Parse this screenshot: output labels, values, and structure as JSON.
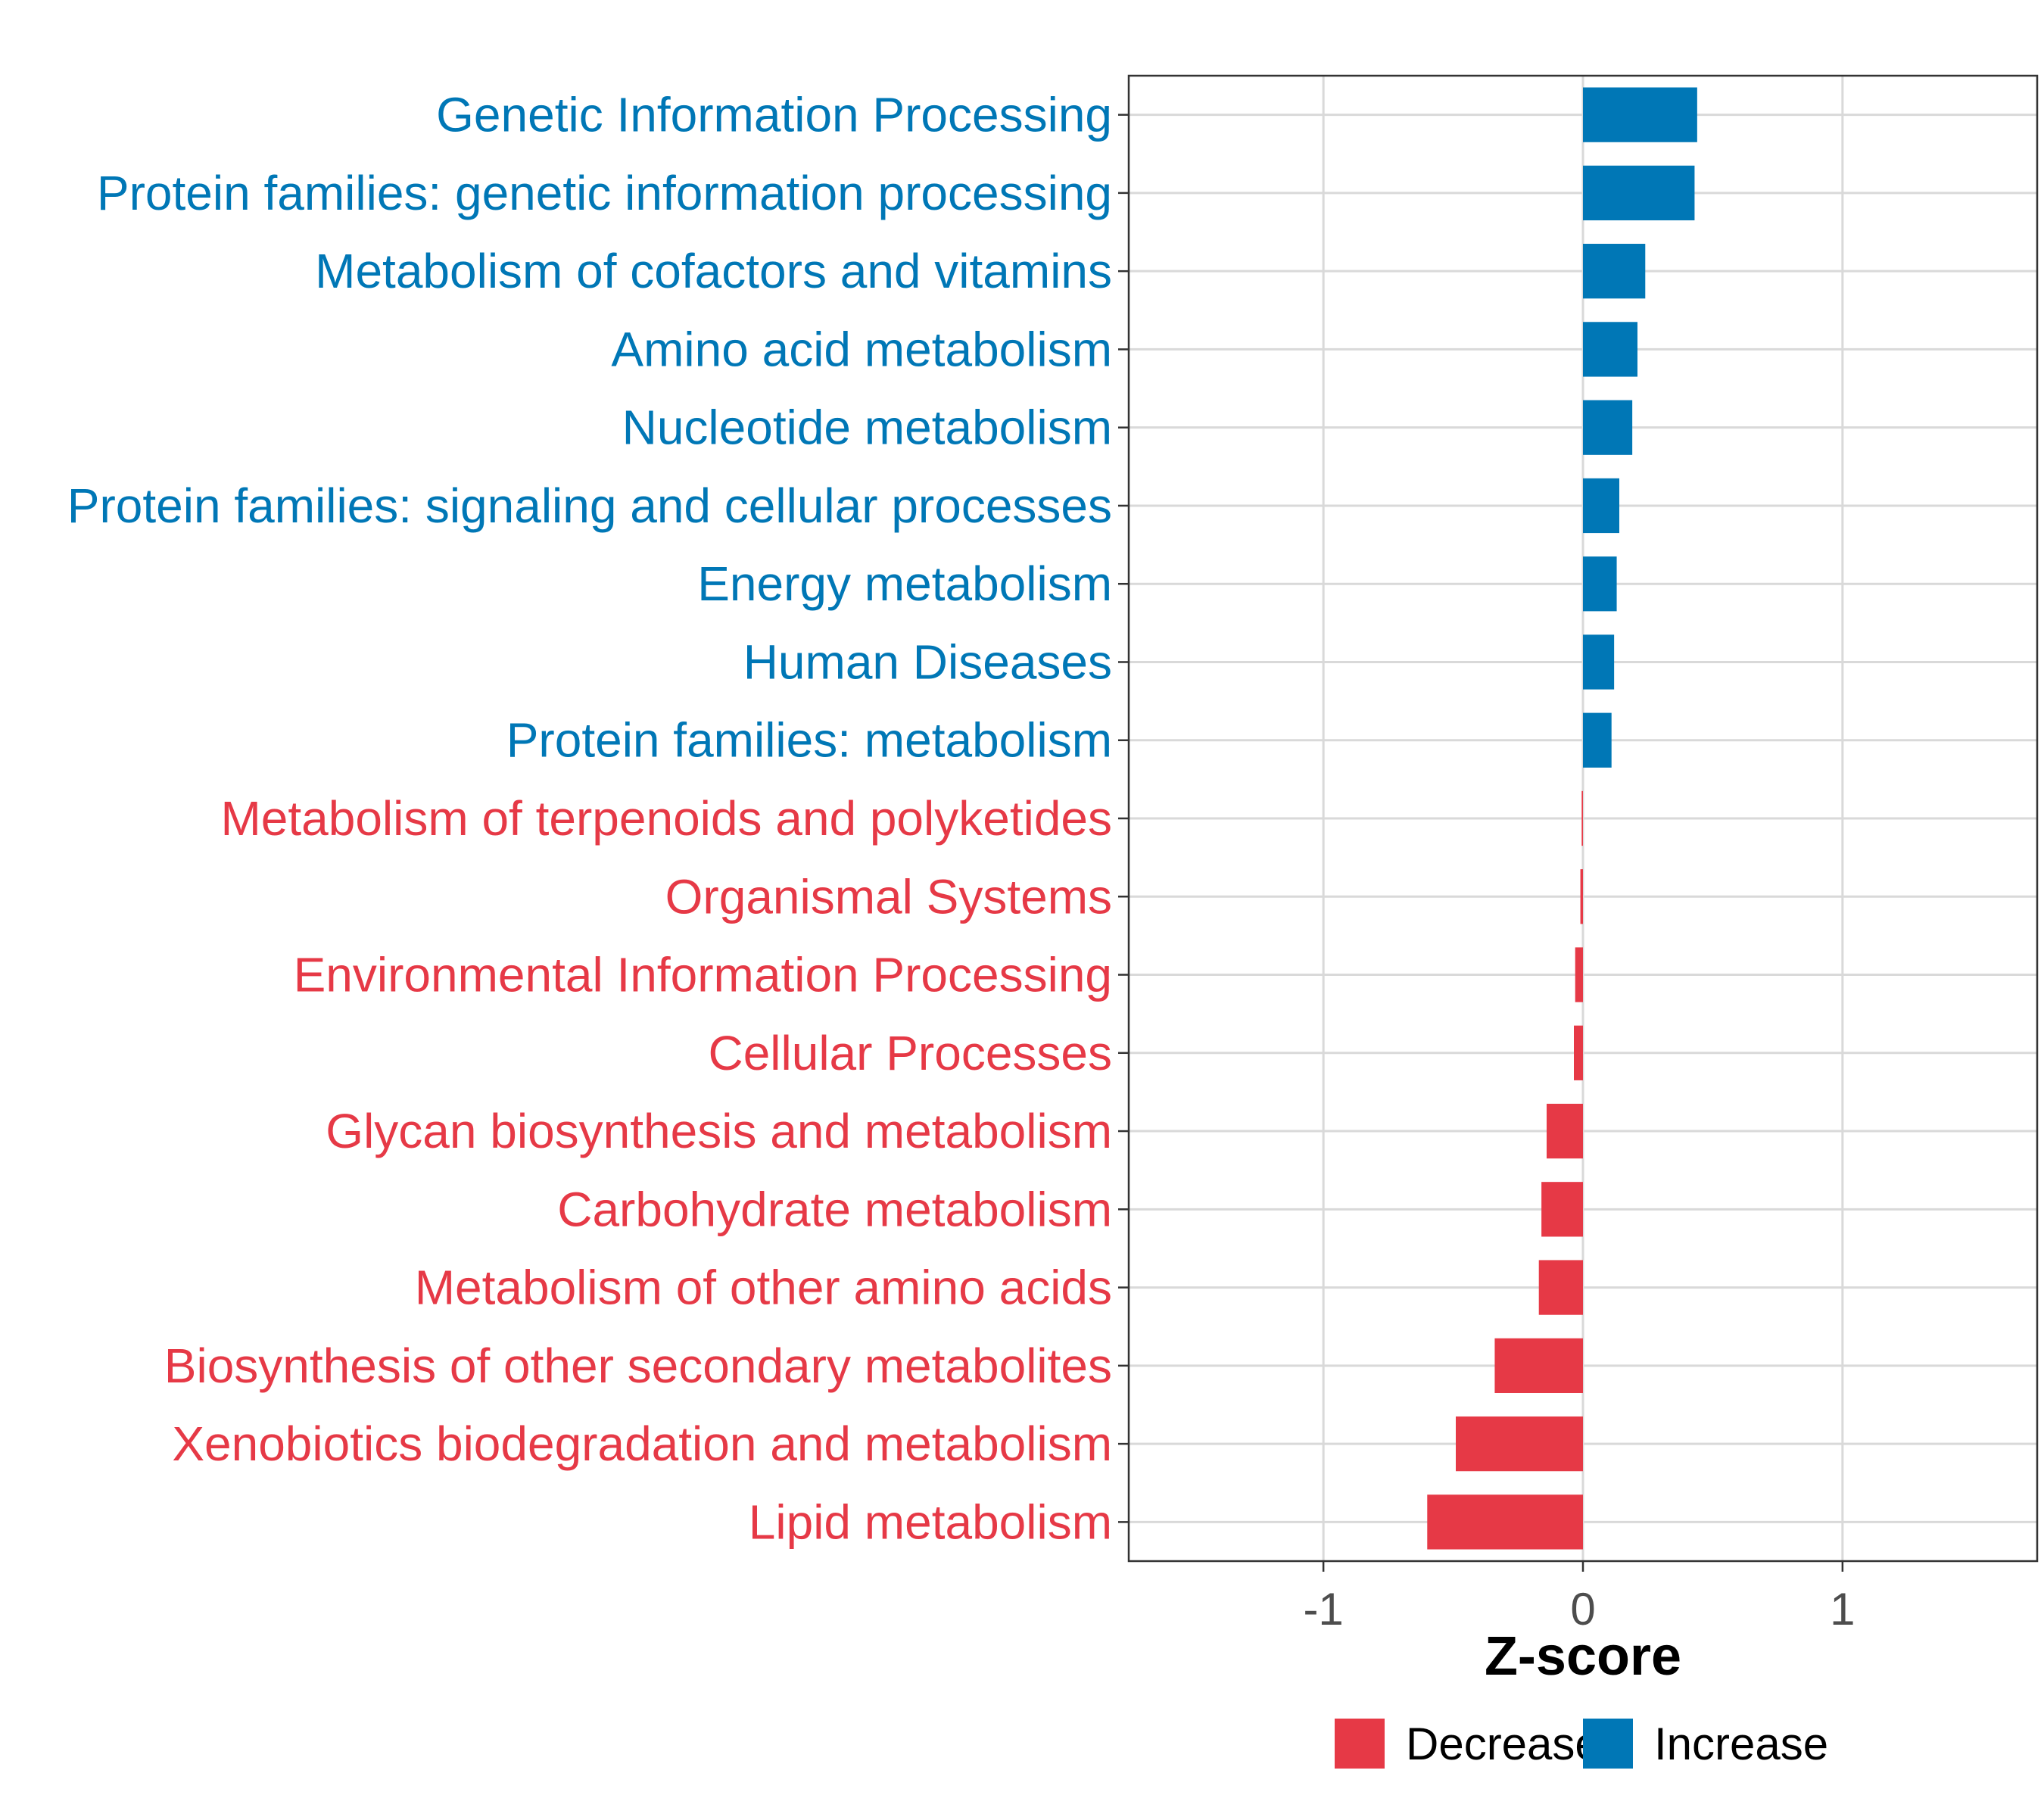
{
  "chart_data": {
    "type": "bar",
    "orientation": "horizontal",
    "title": "",
    "xlabel": "Z-score",
    "ylabel": "",
    "xlim": [
      -1.75,
      1.75
    ],
    "x_ticks": [
      -1,
      0,
      1
    ],
    "x_tick_labels": [
      "-1",
      "0",
      "1"
    ],
    "grid": true,
    "legend_position": "bottom",
    "colors": {
      "Decrease": "#E63946",
      "Increase": "#0077B6"
    },
    "categories": [
      "Genetic Information Processing",
      "Protein families: genetic information processing",
      "Metabolism of cofactors and vitamins",
      "Amino acid metabolism",
      "Nucleotide metabolism",
      "Protein families: signaling and cellular processes",
      "Energy metabolism",
      "Human Diseases",
      "Protein families: metabolism",
      "Metabolism of terpenoids and polyketides",
      "Organismal Systems",
      "Environmental Information Processing",
      "Cellular Processes",
      "Glycan biosynthesis and metabolism",
      "Carbohydrate metabolism",
      "Metabolism of other amino acids",
      "Biosynthesis of other secondary metabolites",
      "Xenobiotics biodegradation and metabolism",
      "Lipid metabolism"
    ],
    "values": [
      0.44,
      0.43,
      0.24,
      0.21,
      0.19,
      0.14,
      0.13,
      0.12,
      0.11,
      -0.005,
      -0.01,
      -0.03,
      -0.035,
      -0.14,
      -0.16,
      -0.17,
      -0.34,
      -0.49,
      -0.6
    ],
    "groups": [
      "Increase",
      "Increase",
      "Increase",
      "Increase",
      "Increase",
      "Increase",
      "Increase",
      "Increase",
      "Increase",
      "Decrease",
      "Decrease",
      "Decrease",
      "Decrease",
      "Decrease",
      "Decrease",
      "Decrease",
      "Decrease",
      "Decrease",
      "Decrease"
    ],
    "legend": [
      {
        "label": "Decrease",
        "color": "#E63946"
      },
      {
        "label": "Increase",
        "color": "#0077B6"
      }
    ]
  }
}
